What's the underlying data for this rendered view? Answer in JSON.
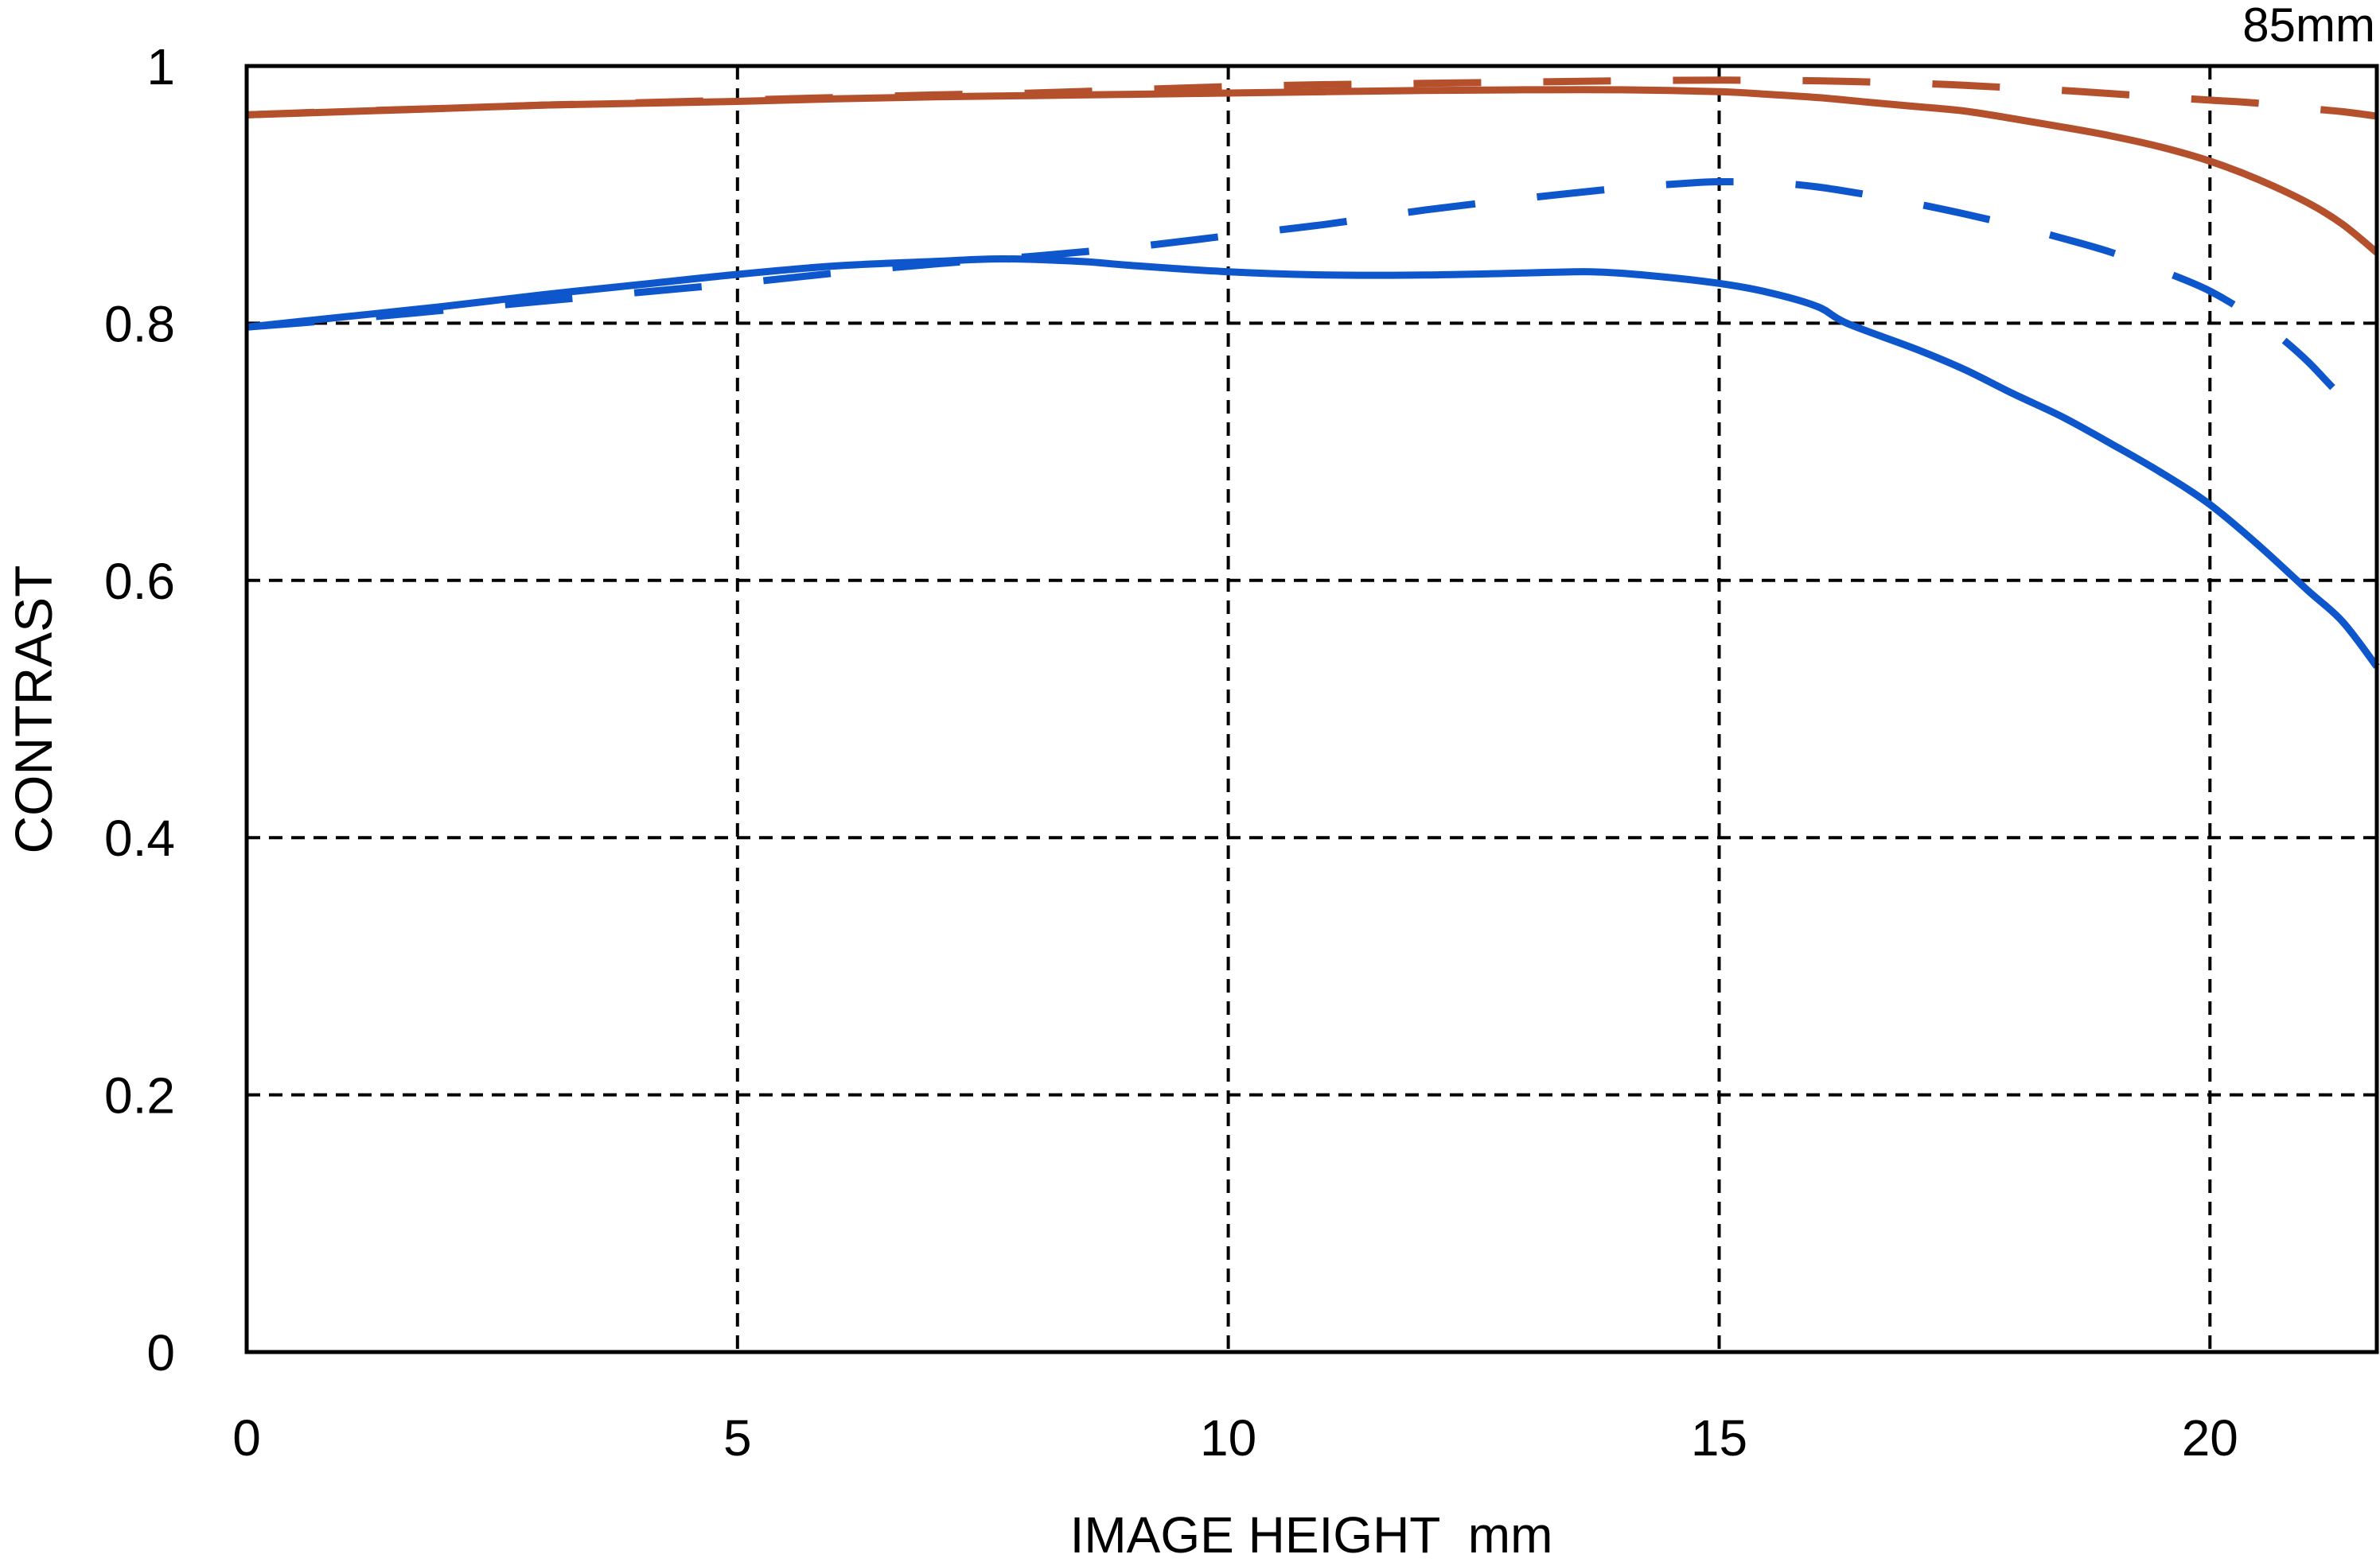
{
  "page": {
    "background": "#ffffff",
    "text_color": "#000000"
  },
  "chart_data": {
    "type": "line",
    "title": "85mm",
    "xlabel": "IMAGE HEIGHT  mm",
    "ylabel": "CONTRAST",
    "xlim": [
      0,
      21.7
    ],
    "ylim": [
      0,
      1
    ],
    "x_ticks": [
      0,
      5,
      10,
      15,
      20
    ],
    "y_ticks": [
      0,
      0.2,
      0.4,
      0.6,
      0.8,
      1
    ],
    "x_tick_labels": [
      "0",
      "5",
      "10",
      "15",
      "20"
    ],
    "y_tick_labels": [
      "0",
      "0.2",
      "0.4",
      "0.6",
      "0.8",
      "1"
    ],
    "grid": true,
    "grid_color": "#000000",
    "axis_color": "#000000",
    "legend": "none",
    "colors": {
      "red": "#B5502D",
      "blue": "#0E56CB"
    },
    "series": [
      {
        "id": "red-solid",
        "name": "red solid curve",
        "color": "#B5502D",
        "style": "solid",
        "points": [
          [
            0,
            0.962
          ],
          [
            1,
            0.9645
          ],
          [
            2,
            0.967
          ],
          [
            3,
            0.9695
          ],
          [
            4,
            0.971
          ],
          [
            5,
            0.9725
          ],
          [
            6,
            0.9745
          ],
          [
            7,
            0.976
          ],
          [
            8,
            0.977
          ],
          [
            9,
            0.978
          ],
          [
            10,
            0.979
          ],
          [
            11,
            0.98
          ],
          [
            12,
            0.981
          ],
          [
            13,
            0.9815
          ],
          [
            14,
            0.9815
          ],
          [
            15,
            0.98
          ],
          [
            15.5,
            0.978
          ],
          [
            16,
            0.9755
          ],
          [
            16.5,
            0.972
          ],
          [
            17,
            0.9685
          ],
          [
            17.5,
            0.965
          ],
          [
            18,
            0.959
          ],
          [
            18.5,
            0.9525
          ],
          [
            19,
            0.9455
          ],
          [
            19.5,
            0.937
          ],
          [
            20,
            0.926
          ],
          [
            20.5,
            0.9115
          ],
          [
            21,
            0.8935
          ],
          [
            21.35,
            0.877
          ],
          [
            21.7,
            0.855
          ]
        ]
      },
      {
        "id": "red-dashed",
        "name": "red dashed curve",
        "color": "#B5502D",
        "style": "dashed",
        "points": [
          [
            0,
            0.962
          ],
          [
            1,
            0.9648
          ],
          [
            2,
            0.967
          ],
          [
            3,
            0.9695
          ],
          [
            4,
            0.9715
          ],
          [
            5,
            0.9735
          ],
          [
            6,
            0.9755
          ],
          [
            7,
            0.9775
          ],
          [
            8,
            0.979
          ],
          [
            9,
            0.9815
          ],
          [
            10,
            0.984
          ],
          [
            11,
            0.9855
          ],
          [
            12,
            0.9865
          ],
          [
            13,
            0.9875
          ],
          [
            14,
            0.9885
          ],
          [
            15,
            0.989
          ],
          [
            16,
            0.9885
          ],
          [
            17,
            0.9865
          ],
          [
            17.5,
            0.985
          ],
          [
            18,
            0.983
          ],
          [
            18.5,
            0.981
          ],
          [
            19,
            0.9785
          ],
          [
            19.5,
            0.976
          ],
          [
            20,
            0.9735
          ],
          [
            20.5,
            0.971
          ],
          [
            21,
            0.967
          ],
          [
            21.35,
            0.9645
          ],
          [
            21.7,
            0.961
          ]
        ]
      },
      {
        "id": "blue-solid",
        "name": "blue solid curve",
        "color": "#0E56CB",
        "style": "solid",
        "points": [
          [
            0,
            0.797
          ],
          [
            1,
            0.805
          ],
          [
            2,
            0.813
          ],
          [
            3,
            0.822
          ],
          [
            4,
            0.83
          ],
          [
            5,
            0.838
          ],
          [
            6,
            0.8445
          ],
          [
            7,
            0.848
          ],
          [
            7.7,
            0.85
          ],
          [
            8.5,
            0.848
          ],
          [
            9,
            0.845
          ],
          [
            10,
            0.84
          ],
          [
            11,
            0.8375
          ],
          [
            12,
            0.8375
          ],
          [
            13,
            0.839
          ],
          [
            13.7,
            0.84
          ],
          [
            14.3,
            0.837
          ],
          [
            15,
            0.831
          ],
          [
            15.5,
            0.824
          ],
          [
            16,
            0.813
          ],
          [
            16.3,
            0.8
          ],
          [
            17,
            0.78
          ],
          [
            17.5,
            0.764
          ],
          [
            18,
            0.745
          ],
          [
            18.5,
            0.727
          ],
          [
            19,
            0.706
          ],
          [
            19.5,
            0.684
          ],
          [
            20,
            0.659
          ],
          [
            20.5,
            0.627
          ],
          [
            21,
            0.592
          ],
          [
            21.35,
            0.568
          ],
          [
            21.7,
            0.533
          ]
        ]
      },
      {
        "id": "blue-dashed",
        "name": "blue dashed curve",
        "color": "#0E56CB",
        "style": "dashed",
        "points": [
          [
            0,
            0.797
          ],
          [
            1,
            0.803
          ],
          [
            2,
            0.81
          ],
          [
            3,
            0.817
          ],
          [
            4,
            0.824
          ],
          [
            5,
            0.831
          ],
          [
            6,
            0.839
          ],
          [
            7,
            0.846
          ],
          [
            8,
            0.852
          ],
          [
            9,
            0.859
          ],
          [
            10,
            0.868
          ],
          [
            11,
            0.877
          ],
          [
            12,
            0.888
          ],
          [
            13,
            0.897
          ],
          [
            14,
            0.905
          ],
          [
            14.7,
            0.909
          ],
          [
            15,
            0.91
          ],
          [
            15.5,
            0.9095
          ],
          [
            16,
            0.906
          ],
          [
            16.5,
            0.9
          ],
          [
            17,
            0.893
          ],
          [
            17.5,
            0.885
          ],
          [
            18,
            0.876
          ],
          [
            18.5,
            0.866
          ],
          [
            19,
            0.855
          ],
          [
            19.5,
            0.841
          ],
          [
            20,
            0.825
          ],
          [
            20.5,
            0.802
          ],
          [
            20.75,
            0.787
          ],
          [
            21,
            0.77
          ],
          [
            21.25,
            0.75
          ],
          [
            21.5,
            0.731
          ],
          [
            21.7,
            0.716
          ]
        ]
      }
    ]
  }
}
